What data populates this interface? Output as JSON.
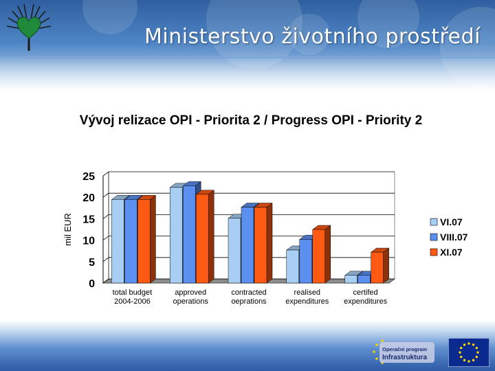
{
  "header": {
    "ministry_name": "Ministerstvo životního prostředí",
    "logo_icon": "heart-leaf-logo-icon"
  },
  "footer": {
    "program_logo": {
      "line1": "Operační program",
      "line2": "Infrastruktura"
    },
    "eu_flag_icon": "eu-flag-icon"
  },
  "chart_data": {
    "type": "bar",
    "title": "Vývoj relizace OPI - Priorita 2 / Progress OPI - Priority 2",
    "ylabel": "mil EUR",
    "xlabel": "",
    "ylim": [
      0,
      25
    ],
    "yticks": [
      0,
      5,
      10,
      15,
      20,
      25
    ],
    "grid": true,
    "legend_position": "right",
    "categories": [
      [
        "total budget",
        "2004-2006"
      ],
      [
        "approved",
        "operations"
      ],
      [
        "contracted",
        "oeprations"
      ],
      [
        "realised",
        "expenditures"
      ],
      [
        "certifed",
        "expenditures"
      ]
    ],
    "series": [
      {
        "name": "VI.07",
        "color": "#a8cef4",
        "values": [
          19.5,
          22.3,
          15.1,
          7.7,
          1.8
        ]
      },
      {
        "name": "VIII.07",
        "color": "#5b8ff0",
        "values": [
          19.5,
          22.7,
          17.7,
          10.2,
          1.8
        ]
      },
      {
        "name": "XI.07",
        "color": "#ff5a14",
        "values": [
          19.5,
          20.7,
          17.7,
          12.5,
          7.2
        ]
      }
    ]
  }
}
